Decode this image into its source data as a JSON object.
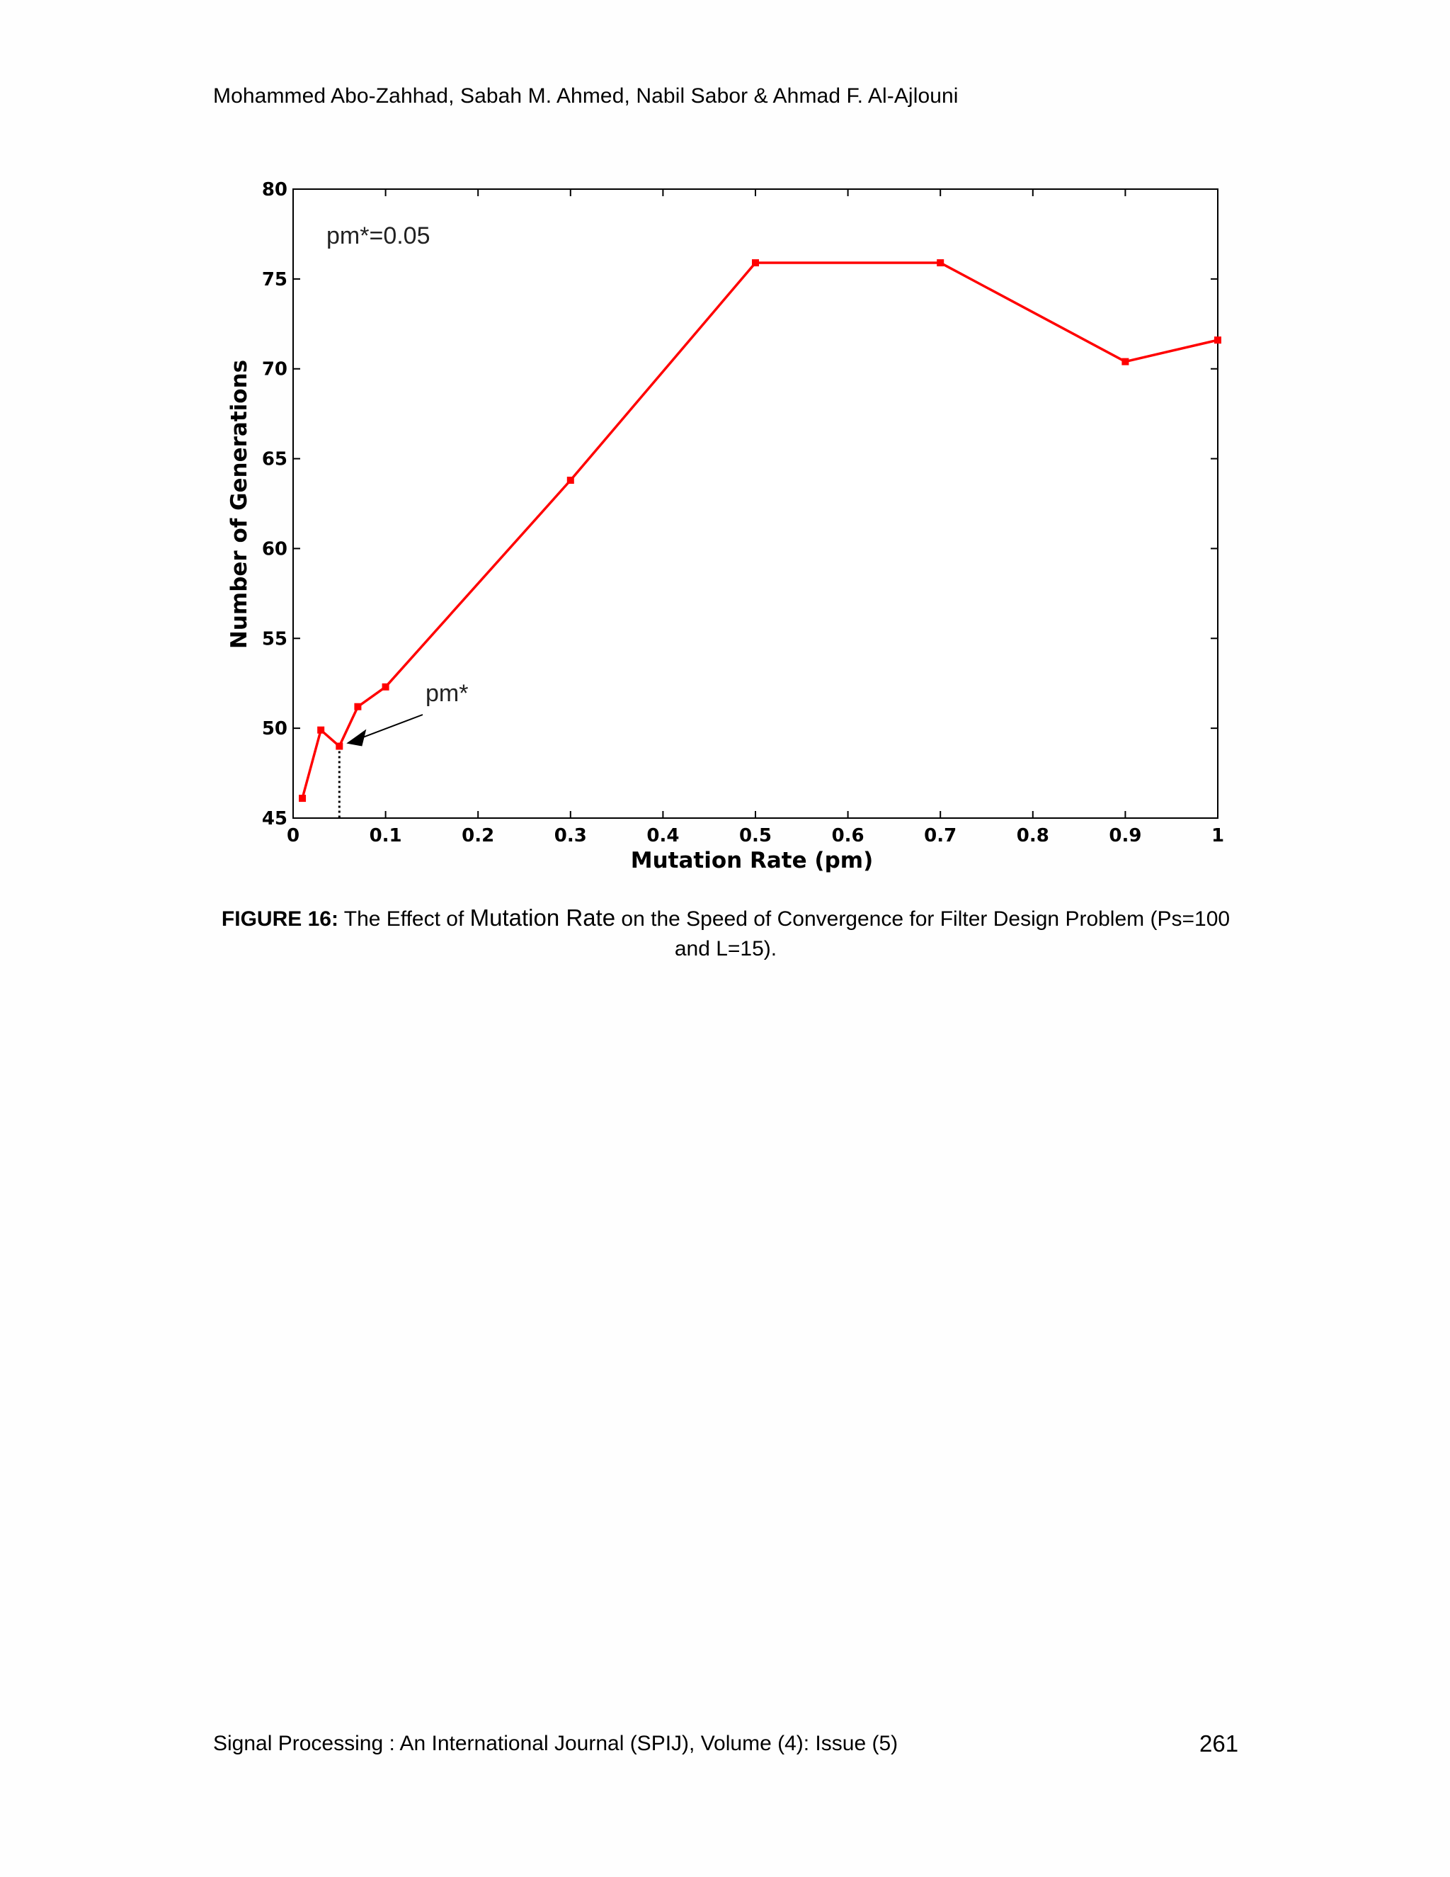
{
  "header": {
    "authors": "Mohammed Abo-Zahhad, Sabah M. Ahmed, Nabil Sabor & Ahmad F. Al-Ajlouni"
  },
  "chart_data": {
    "type": "line",
    "x": [
      0.01,
      0.03,
      0.05,
      0.07,
      0.1,
      0.3,
      0.5,
      0.7,
      0.9,
      1.0
    ],
    "series": [
      {
        "values": [
          46.1,
          49.9,
          49.0,
          51.2,
          52.3,
          63.8,
          75.9,
          75.9,
          70.4,
          71.6
        ],
        "color": "#ff0000"
      }
    ],
    "title": "",
    "xlabel": "Mutation Rate (pm)",
    "ylabel": "Number of Generations",
    "xlim": [
      0,
      1
    ],
    "ylim": [
      45,
      80
    ],
    "xticks": [
      0,
      0.1,
      0.2,
      0.3,
      0.4,
      0.5,
      0.6,
      0.7,
      0.8,
      0.9,
      1
    ],
    "xtick_labels": [
      "0",
      "0.1",
      "0.2",
      "0.3",
      "0.4",
      "0.5",
      "0.6",
      "0.7",
      "0.8",
      "0.9",
      "1"
    ],
    "yticks": [
      45,
      50,
      55,
      60,
      65,
      70,
      75,
      80
    ],
    "ytick_labels": [
      "45",
      "50",
      "55",
      "60",
      "65",
      "70",
      "75",
      "80"
    ],
    "grid": false,
    "annotations": {
      "top_left_text": "pm*=0.05",
      "arrow_text": "pm*",
      "marked_x": 0.05,
      "marked_y": 49.0
    }
  },
  "caption": {
    "label": "FIGURE 16:",
    "text_a": " The Effect of ",
    "text_b": "Mutation Rate",
    "text_c": " on the Speed of Convergence for Filter Design Problem (Ps=100 and L=15)."
  },
  "footer": {
    "journal": "Signal Processing : An International Journal (SPIJ), Volume (4): Issue (5)",
    "page": "261"
  }
}
